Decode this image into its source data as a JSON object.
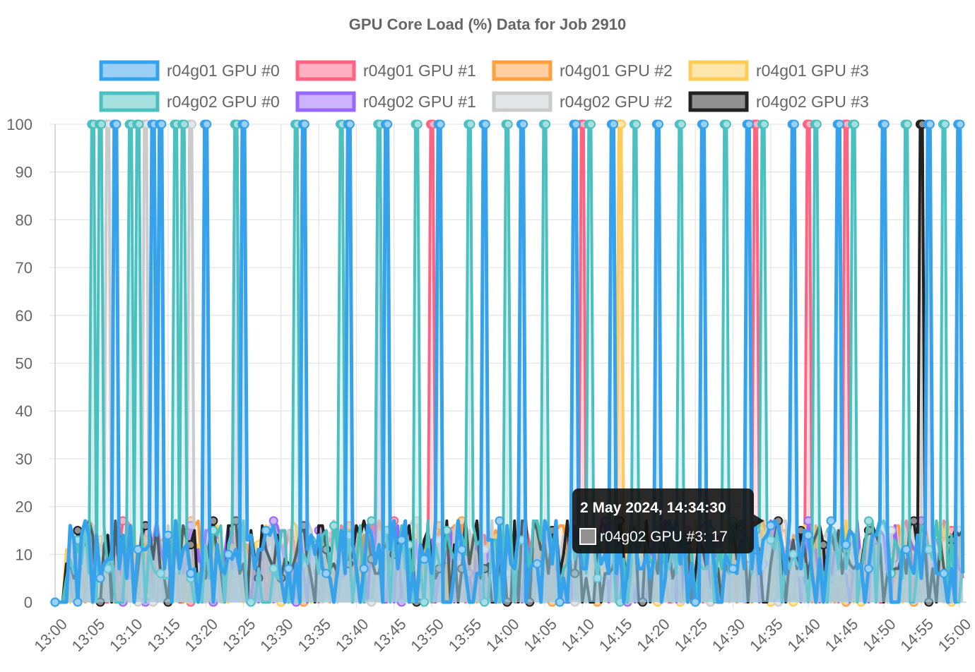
{
  "chart_data": {
    "type": "line",
    "title": "GPU Core Load (%) Data for Job 2910",
    "xlabel": "",
    "ylabel": "",
    "ylim": [
      0,
      100
    ],
    "y_ticks": [
      0,
      10,
      20,
      30,
      40,
      50,
      60,
      70,
      80,
      90,
      100
    ],
    "x_range": [
      "13:00",
      "15:01"
    ],
    "x_ticks": [
      "13:00",
      "13:05",
      "13:10",
      "13:15",
      "13:20",
      "13:25",
      "13:30",
      "13:35",
      "13:40",
      "13:45",
      "13:50",
      "13:55",
      "14:00",
      "14:05",
      "14:10",
      "14:15",
      "14:20",
      "14:25",
      "14:30",
      "14:35",
      "14:40",
      "14:45",
      "14:50",
      "14:55",
      "15:00"
    ],
    "grid": true,
    "legend_position": "top",
    "series": [
      {
        "name": "r04g01 GPU #0",
        "color": "#36a2eb",
        "fill": "#9ad0f5",
        "spikes": [
          "13:08",
          "13:13",
          "13:14",
          "13:20",
          "13:25",
          "13:33",
          "13:39",
          "13:44",
          "13:51",
          "13:57",
          "14:02",
          "14:09",
          "14:14",
          "14:20",
          "14:26",
          "14:32",
          "14:38",
          "14:44",
          "14:50",
          "14:56",
          "15:00"
        ]
      },
      {
        "name": "r04g01 GPU #1",
        "color": "#ff6384",
        "fill": "#ffb1c1",
        "spikes": [
          "13:50",
          "14:10",
          "14:15",
          "14:33",
          "14:40",
          "14:45",
          "14:56"
        ]
      },
      {
        "name": "r04g01 GPU #2",
        "color": "#ff9f40",
        "fill": "#ffcf9f",
        "spikes": []
      },
      {
        "name": "r04g01 GPU #3",
        "color": "#ffcd56",
        "fill": "#ffe6aa",
        "spikes": [
          "14:15"
        ]
      },
      {
        "name": "r04g02 GPU #0",
        "color": "#4bc0c0",
        "fill": "#a5dfdf",
        "spikes": [
          "13:05",
          "13:06",
          "13:10",
          "13:11",
          "13:16",
          "13:17",
          "13:24",
          "13:32",
          "13:38",
          "13:43",
          "13:48",
          "13:55",
          "14:00",
          "14:05",
          "14:11",
          "14:17",
          "14:23",
          "14:29",
          "14:34",
          "14:41",
          "14:46",
          "14:53",
          "14:58"
        ]
      },
      {
        "name": "r04g02 GPU #1",
        "color": "#9966ff",
        "fill": "#ccb2ff",
        "spikes": [
          "13:24",
          "13:43"
        ]
      },
      {
        "name": "r04g02 GPU #2",
        "color": "#c9cbcf",
        "fill": "#e4e5e7",
        "spikes": [
          "13:07",
          "13:12",
          "13:18"
        ]
      },
      {
        "name": "r04g02 GPU #3",
        "color": "#222222",
        "fill": "#919191",
        "spikes": [
          "14:55"
        ]
      }
    ]
  },
  "tooltip": {
    "title": "2 May 2024, 14:34:30",
    "label": "r04g02 GPU #3: 17",
    "at": "14:34:30",
    "value": 17
  }
}
